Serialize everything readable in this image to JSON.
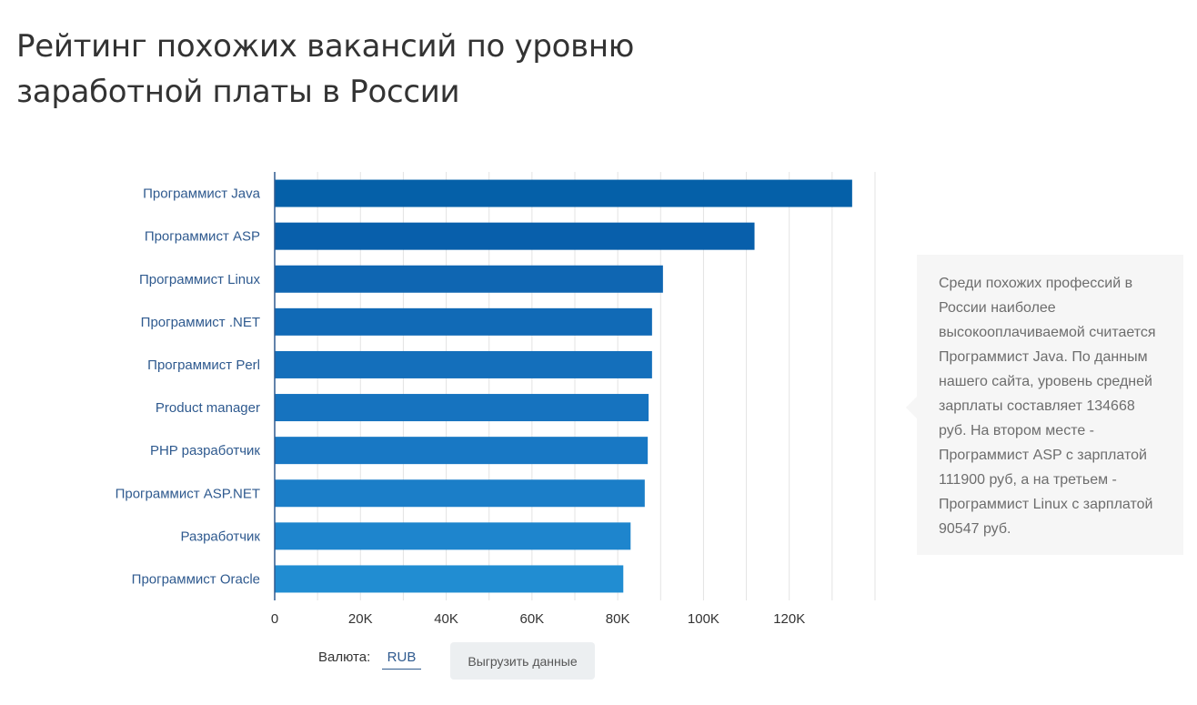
{
  "page": {
    "title": "Рейтинг похожих вакансий по уровню заработной платы в России"
  },
  "chart_data": {
    "type": "bar",
    "orientation": "horizontal",
    "categories": [
      "Программист Java",
      "Программист ASP",
      "Программист Linux",
      "Программист .NET",
      "Программист Perl",
      "Product manager",
      "PHP разработчик",
      "Программист ASP.NET",
      "Разработчик",
      "Программист Oracle"
    ],
    "values": [
      134668,
      111900,
      90547,
      88000,
      88000,
      87200,
      87000,
      86300,
      83000,
      81300
    ],
    "xlim": [
      0,
      140000
    ],
    "xticks": [
      0,
      20000,
      40000,
      60000,
      80000,
      100000,
      120000
    ],
    "xtick_labels": [
      "0",
      "20K",
      "40K",
      "60K",
      "80K",
      "100K",
      "120K"
    ],
    "grid": true,
    "bar_colors": [
      "#0560a8",
      "#085fab",
      "#0f66b2",
      "#116ab6",
      "#146fbb",
      "#1673bf",
      "#1878c4",
      "#1b7ec8",
      "#1e85cd",
      "#218dd2"
    ]
  },
  "info": {
    "text": "Среди похожих профессий в России наиболее высокооплачиваемой считается Программист Java. По данным нашего сайта, уровень средней зарплаты составляет 134668 руб. На втором месте - Программист ASP с зарплатой 111900 руб, а на третьем - Программист Linux с зарплатой 90547 руб."
  },
  "controls": {
    "currency_label": "Валюта:",
    "currency_value": "RUB",
    "export_label": "Выгрузить данные"
  }
}
